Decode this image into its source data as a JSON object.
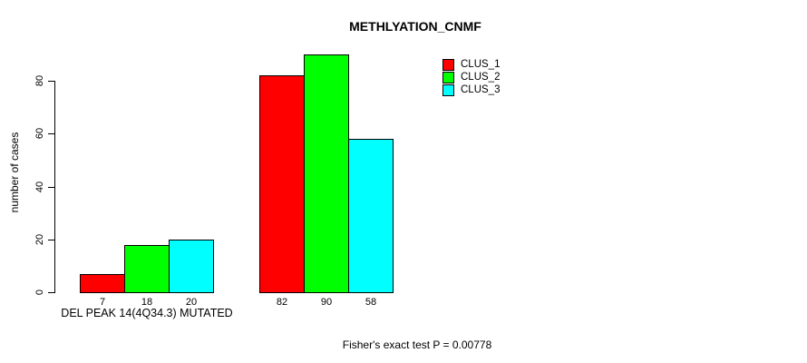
{
  "chart_data": {
    "type": "bar",
    "title": "METHLYATION_CNMF",
    "ylabel": "number of cases",
    "xlabel": "",
    "ylim": [
      0,
      80
    ],
    "yticks": [
      0,
      20,
      40,
      60,
      80
    ],
    "grid": false,
    "legend_position": "top-right",
    "legend": [
      "CLUS_1",
      "CLUS_2",
      "CLUS_3"
    ],
    "series": [
      {
        "name": "CLUS_1",
        "color": "#ff0000",
        "values": [
          7,
          82
        ]
      },
      {
        "name": "CLUS_2",
        "color": "#00ff00",
        "values": [
          18,
          90
        ]
      },
      {
        "name": "CLUS_3",
        "color": "#00ffff",
        "values": [
          20,
          58
        ]
      }
    ],
    "groups": [
      {
        "label": "DEL PEAK 14(4Q34.3) MUTATED",
        "bar_labels": [
          "7",
          "18",
          "20"
        ]
      },
      {
        "label": "",
        "bar_labels": [
          "82",
          "90",
          "58"
        ]
      }
    ],
    "annotation": "Fisher's exact test P = 0.00778"
  }
}
